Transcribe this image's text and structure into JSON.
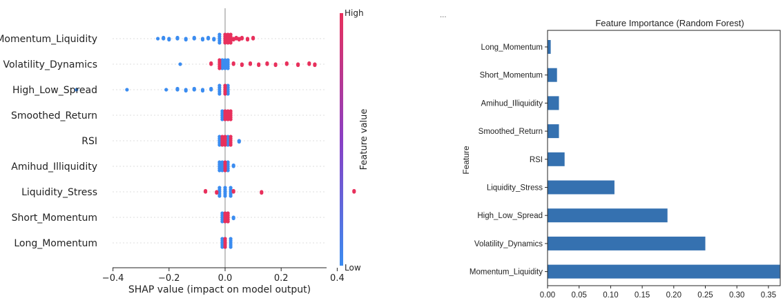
{
  "ellipsis": "...",
  "colors": {
    "high": "#e8305c",
    "low": "#3b8cf0",
    "bar": "#3571b0",
    "mid": "#8a3fc4"
  },
  "chart_data": [
    {
      "type": "scatter",
      "subtype": "shap_beeswarm",
      "title": "",
      "xlabel": "SHAP value (impact on model output)",
      "ylabel": "",
      "xlim": [
        -0.56,
        0.5
      ],
      "xticks": [
        "−0.4",
        "−0.2",
        "0.0",
        "0.2",
        "0.4"
      ],
      "xtick_values": [
        -0.4,
        -0.2,
        0.0,
        0.2,
        0.4
      ],
      "features": [
        "Momentum_Liquidity",
        "Volatility_Dynamics",
        "High_Low_Spread",
        "Smoothed_Return",
        "RSI",
        "Amihud_Illiquidity",
        "Liquidity_Stress",
        "Short_Momentum",
        "Long_Momentum"
      ],
      "colorbar": {
        "label": "Feature value",
        "high_label": "High",
        "low_label": "Low"
      },
      "points": [
        {
          "feature": "Momentum_Liquidity",
          "low_values": [
            -0.22,
            -0.2,
            -0.17,
            -0.14,
            -0.11,
            -0.08,
            -0.06,
            -0.04,
            -0.02,
            0.0
          ],
          "high_values": [
            0.0,
            0.01,
            0.02,
            0.03,
            0.04,
            0.05,
            0.06,
            0.08,
            0.1
          ],
          "outliers": [
            -0.24
          ]
        },
        {
          "feature": "Volatility_Dynamics",
          "low_values": [
            -0.01,
            0.0,
            0.01
          ],
          "high_values": [
            -0.05,
            -0.02,
            0.03,
            0.06,
            0.09,
            0.12,
            0.15,
            0.18,
            0.22,
            0.26,
            0.3,
            0.32
          ],
          "outliers": [
            -0.16
          ]
        },
        {
          "feature": "High_Low_Spread",
          "low_values": [
            -0.17,
            -0.14,
            -0.11,
            -0.08,
            -0.05,
            -0.02,
            0.0,
            0.01
          ],
          "high_values": [
            0.0
          ],
          "outliers": [
            -0.53,
            -0.35,
            -0.21
          ]
        },
        {
          "feature": "Smoothed_Return",
          "low_values": [
            -0.01,
            0.0
          ],
          "high_values": [
            0.0,
            0.01,
            0.02
          ],
          "outliers": []
        },
        {
          "feature": "RSI",
          "low_values": [
            -0.02,
            0.0,
            0.01,
            0.05
          ],
          "high_values": [
            -0.01,
            0.0,
            0.02
          ],
          "outliers": []
        },
        {
          "feature": "Amihud_Illiquidity",
          "low_values": [
            -0.02,
            -0.01,
            0.0,
            0.01,
            0.03
          ],
          "high_values": [
            0.0
          ],
          "outliers": []
        },
        {
          "feature": "Liquidity_Stress",
          "low_values": [
            -0.02,
            0.0,
            0.02
          ],
          "high_values": [
            -0.07,
            -0.03,
            0.03,
            0.13,
            0.46
          ],
          "outliers": []
        },
        {
          "feature": "Short_Momentum",
          "low_values": [
            -0.01,
            0.0,
            0.01,
            0.03
          ],
          "high_values": [
            0.0,
            0.01
          ],
          "outliers": []
        },
        {
          "feature": "Long_Momentum",
          "low_values": [
            -0.01,
            0.0,
            0.02
          ],
          "high_values": [
            0.0
          ],
          "outliers": []
        }
      ]
    },
    {
      "type": "bar",
      "orientation": "horizontal",
      "title": "Feature Importance (Random Forest)",
      "xlabel": "",
      "ylabel": "Feature",
      "xlim": [
        0.0,
        0.37
      ],
      "xticks": [
        "0.00",
        "0.05",
        "0.10",
        "0.15",
        "0.20",
        "0.25",
        "0.30",
        "0.35"
      ],
      "xtick_values": [
        0.0,
        0.05,
        0.1,
        0.15,
        0.2,
        0.25,
        0.3,
        0.35
      ],
      "categories": [
        "Long_Momentum",
        "Short_Momentum",
        "Amihud_Illiquidity",
        "Smoothed_Return",
        "RSI",
        "Liquidity_Stress",
        "High_Low_Spread",
        "Volatility_Dynamics",
        "Momentum_Liquidity"
      ],
      "values": [
        0.005,
        0.015,
        0.018,
        0.018,
        0.027,
        0.106,
        0.19,
        0.25,
        0.368
      ]
    }
  ]
}
